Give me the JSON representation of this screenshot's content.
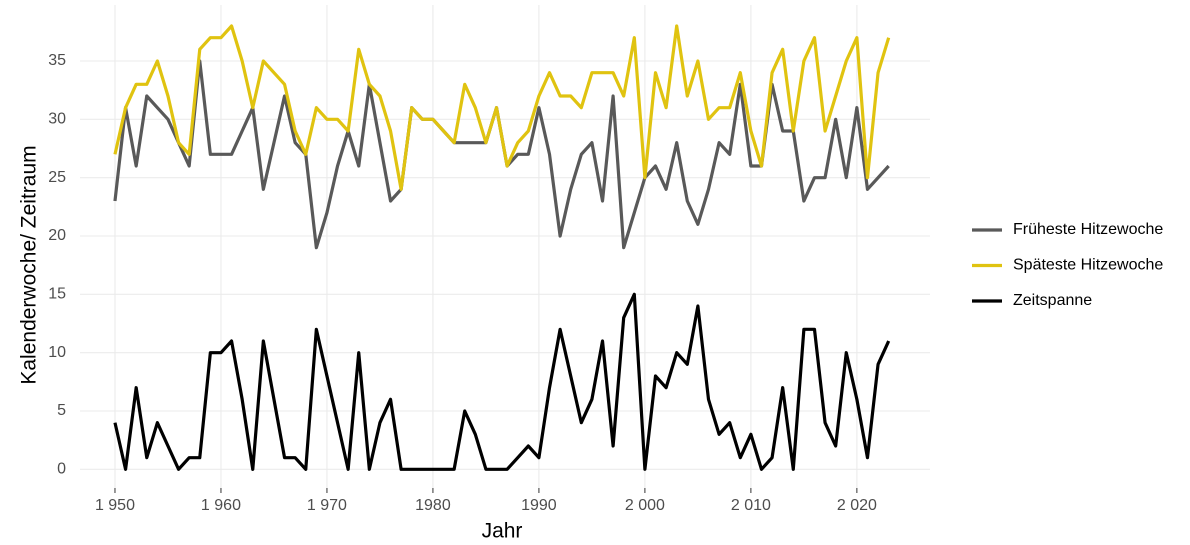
{
  "chart_data": {
    "type": "line",
    "x_label": "Jahr",
    "y_label": "Kalenderwoche/ Zeitraum",
    "x": [
      1950,
      1951,
      1952,
      1953,
      1954,
      1955,
      1956,
      1957,
      1958,
      1959,
      1960,
      1961,
      1962,
      1963,
      1964,
      1965,
      1966,
      1967,
      1968,
      1969,
      1970,
      1971,
      1972,
      1973,
      1974,
      1975,
      1976,
      1977,
      1978,
      1979,
      1980,
      1981,
      1982,
      1983,
      1984,
      1985,
      1986,
      1987,
      1988,
      1989,
      1990,
      1991,
      1992,
      1993,
      1994,
      1995,
      1996,
      1997,
      1998,
      1999,
      2000,
      2001,
      2002,
      2003,
      2004,
      2005,
      2006,
      2007,
      2008,
      2009,
      2010,
      2011,
      2012,
      2013,
      2014,
      2015,
      2016,
      2017,
      2018,
      2019,
      2020,
      2021,
      2022,
      2023
    ],
    "series": [
      {
        "name": "Früheste Hitzewoche",
        "color": "#595959",
        "values": [
          23,
          31,
          26,
          32,
          31,
          30,
          28,
          26,
          35,
          27,
          27,
          27,
          29,
          31,
          24,
          28,
          32,
          28,
          27,
          19,
          22,
          26,
          29,
          26,
          33,
          28,
          23,
          24,
          31,
          30,
          30,
          29,
          28,
          28,
          28,
          28,
          31,
          26,
          27,
          27,
          31,
          27,
          20,
          24,
          27,
          28,
          23,
          32,
          19,
          22,
          25,
          26,
          24,
          28,
          23,
          21,
          24,
          28,
          27,
          33,
          26,
          26,
          33,
          29,
          29,
          23,
          25,
          25,
          30,
          25,
          31,
          24,
          25,
          26
        ]
      },
      {
        "name": "Späteste Hitzewoche",
        "color": "#e0c310",
        "values": [
          27,
          31,
          33,
          33,
          35,
          32,
          28,
          27,
          36,
          37,
          37,
          38,
          35,
          31,
          35,
          34,
          33,
          29,
          27,
          31,
          30,
          30,
          29,
          36,
          33,
          32,
          29,
          24,
          31,
          30,
          30,
          29,
          28,
          33,
          31,
          28,
          31,
          26,
          28,
          29,
          32,
          34,
          32,
          32,
          31,
          34,
          34,
          34,
          32,
          37,
          25,
          34,
          31,
          38,
          32,
          35,
          30,
          31,
          31,
          34,
          29,
          26,
          34,
          36,
          29,
          35,
          37,
          29,
          32,
          35,
          37,
          25,
          34,
          37
        ]
      },
      {
        "name": "Zeitspanne",
        "color": "#000000",
        "values": [
          4,
          0,
          7,
          1,
          4,
          2,
          0,
          1,
          1,
          10,
          10,
          11,
          6,
          0,
          11,
          6,
          1,
          1,
          0,
          12,
          8,
          4,
          0,
          10,
          0,
          4,
          6,
          0,
          0,
          0,
          0,
          0,
          0,
          5,
          3,
          0,
          0,
          0,
          1,
          2,
          1,
          7,
          12,
          8,
          4,
          6,
          11,
          2,
          13,
          15,
          0,
          8,
          7,
          10,
          9,
          14,
          6,
          3,
          4,
          1,
          3,
          0,
          1,
          7,
          0,
          12,
          12,
          4,
          2,
          10,
          6,
          1,
          9,
          11
        ]
      }
    ],
    "xlim": [
      1946.7,
      2026.9
    ],
    "ylim": [
      -1.6,
      39.8
    ],
    "xticks": [
      {
        "value": 1950,
        "label": "1 950"
      },
      {
        "value": 1960,
        "label": "1 960"
      },
      {
        "value": 1970,
        "label": "1 970"
      },
      1980,
      1990,
      {
        "value": 2000,
        "label": "2 000"
      },
      {
        "value": 2010,
        "label": "2 010"
      },
      {
        "value": 2020,
        "label": "2 020"
      }
    ],
    "yticks": [
      0,
      5,
      10,
      15,
      20,
      25,
      30,
      35
    ],
    "grid": true,
    "legend": "right"
  }
}
